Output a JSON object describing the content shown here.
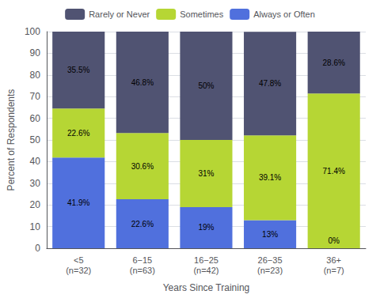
{
  "chart_data": {
    "type": "bar",
    "stacked": true,
    "categories": [
      "<5\n(n=32)",
      "6−15\n(n=63)",
      "16−25\n(n=42)",
      "26−35\n(n=23)",
      "36+\n(n=7)"
    ],
    "xlabel": "Years Since Training",
    "ylabel": "Percent of Respondents",
    "series": [
      {
        "name": "Always or Often",
        "values": [
          41.9,
          22.6,
          19.0,
          13.0,
          0.0
        ],
        "value_labels": [
          "41.9%",
          "22.6%",
          "19%",
          "13%",
          "0%"
        ]
      },
      {
        "name": "Sometimes",
        "values": [
          22.6,
          30.6,
          31.0,
          39.1,
          71.4
        ],
        "value_labels": [
          "22.6%",
          "30.6%",
          "31%",
          "39.1%",
          "71.4%"
        ]
      },
      {
        "name": "Rarely or Never",
        "values": [
          35.5,
          46.8,
          50.0,
          47.8,
          28.6
        ],
        "value_labels": [
          "35.5%",
          "46.8%",
          "50%",
          "47.8%",
          "28.6%"
        ]
      }
    ],
    "ylim": [
      0,
      100
    ],
    "yticks": [
      0,
      10,
      20,
      30,
      40,
      50,
      60,
      70,
      80,
      90,
      100
    ],
    "grid": true,
    "legend": "top",
    "data_labels": true
  }
}
